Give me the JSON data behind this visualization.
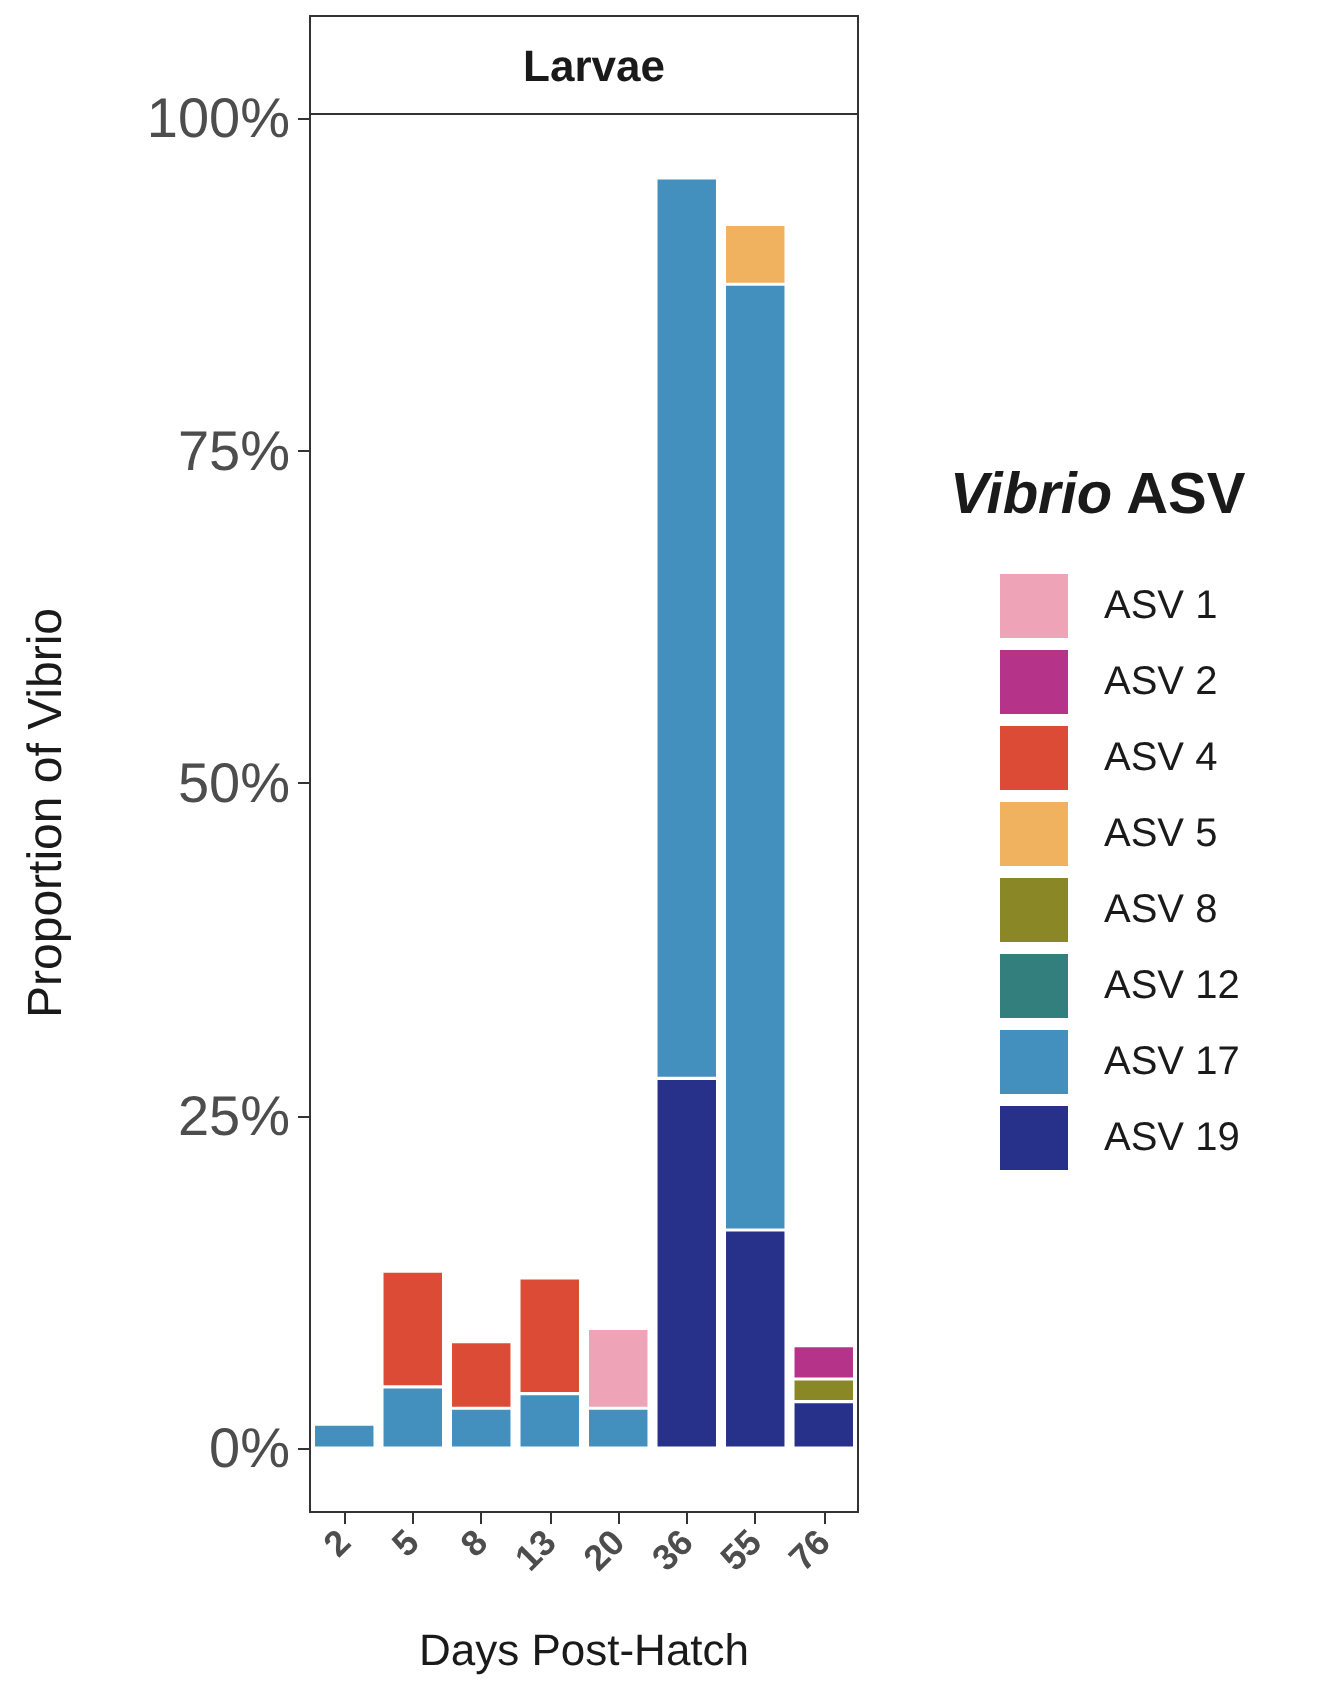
{
  "chart_data": {
    "type": "bar",
    "title": "Larvae",
    "xlabel": "Days Post-Hatch",
    "ylabel": "Proportion of Vibrio",
    "legend_title": "Vibrio ASV",
    "categories": [
      "2",
      "5",
      "8",
      "13",
      "20",
      "36",
      "55",
      "76"
    ],
    "stacked": true,
    "series": [
      {
        "name": "ASV 19",
        "color": "#283189",
        "values": [
          null,
          null,
          null,
          null,
          null,
          27.8,
          16.4,
          3.5
        ]
      },
      {
        "name": "ASV 17",
        "color": "#438fbd",
        "values": [
          1.8,
          4.6,
          3.0,
          4.1,
          3.0,
          67.7,
          71.1,
          null
        ]
      },
      {
        "name": "ASV 12",
        "color": "#327f7e",
        "values": [
          null,
          null,
          null,
          null,
          null,
          null,
          null,
          null
        ]
      },
      {
        "name": "ASV 8",
        "color": "#8a8826",
        "values": [
          null,
          null,
          null,
          null,
          null,
          null,
          null,
          1.7
        ]
      },
      {
        "name": "ASV 5",
        "color": "#f0b25f",
        "values": [
          null,
          null,
          null,
          null,
          null,
          null,
          4.5,
          null
        ]
      },
      {
        "name": "ASV 4",
        "color": "#dc4b36",
        "values": [
          null,
          8.7,
          5.0,
          8.7,
          null,
          null,
          null,
          null
        ]
      },
      {
        "name": "ASV 2",
        "color": "#b5348a",
        "values": [
          null,
          null,
          null,
          null,
          null,
          null,
          null,
          2.5
        ]
      },
      {
        "name": "ASV 1",
        "color": "#eea3b6",
        "values": [
          null,
          null,
          null,
          null,
          6.0,
          null,
          null,
          null
        ]
      }
    ],
    "ylim": [
      -4.8,
      100.3
    ],
    "yticks": [
      {
        "value": 0,
        "label": "0%"
      },
      {
        "value": 25,
        "label": "25%"
      },
      {
        "value": 50,
        "label": "50%"
      },
      {
        "value": 75,
        "label": "75%"
      },
      {
        "value": 100,
        "label": "100%"
      }
    ],
    "grid": false,
    "legend": "right"
  }
}
